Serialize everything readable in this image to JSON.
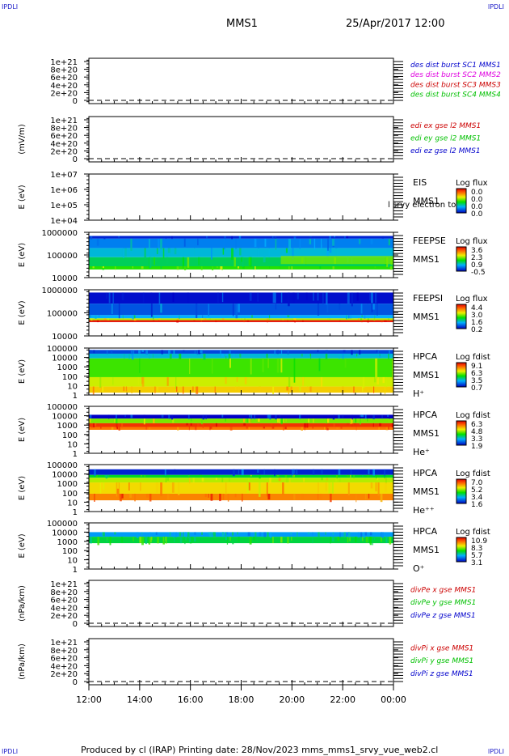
{
  "corners": {
    "tl": "IPDLI",
    "tr": "IPDLI",
    "bl": "IPDLI",
    "br": "IPDLI"
  },
  "header": {
    "mission": "MMS1",
    "datetime": "25/Apr/2017 12:00"
  },
  "footer": {
    "text": "Produced by cl (IRAP)   Printing date: 28/Nov/2023   mms_mms1_srvy_vue_web2.cl"
  },
  "xaxis": {
    "ticks": [
      "12:00",
      "14:00",
      "16:00",
      "18:00",
      "20:00",
      "22:00",
      "00:00"
    ]
  },
  "colors": {
    "red": "#cc0000",
    "green": "#00c000",
    "blue": "#0000cc",
    "magenta": "#e000e0"
  },
  "chart_data": [
    {
      "type": "line",
      "ylabel": "",
      "yticks": [
        "1e+21",
        "8e+20",
        "6e+20",
        "4e+20",
        "2e+20",
        "0"
      ],
      "ylim": [
        0,
        1e+21
      ],
      "legend": [
        {
          "text": "des dist burst SC1 MMS1",
          "color": "#0000cc"
        },
        {
          "text": "des dist burst SC2 MMS2",
          "color": "#e000e0"
        },
        {
          "text": "des dist burst SC3 MMS3",
          "color": "#cc0000"
        },
        {
          "text": "des dist burst SC4 MMS4",
          "color": "#00c000"
        }
      ]
    },
    {
      "type": "line",
      "ylabel": "(mV/m)",
      "yticks": [
        "1e+21",
        "8e+20",
        "6e+20",
        "4e+20",
        "2e+20",
        "0"
      ],
      "ylim": [
        0,
        1e+21
      ],
      "legend": [
        {
          "text": "edi ex gse l2 MMS1",
          "color": "#cc0000"
        },
        {
          "text": "edi ey gse l2 MMS1",
          "color": "#00c000"
        },
        {
          "text": "edi ez gse l2 MMS1",
          "color": "#0000cc"
        }
      ]
    },
    {
      "type": "heatmap",
      "ylabel": "E (eV)",
      "yticks": [
        "1e+07",
        "1e+06",
        "1e+05",
        "1e+04"
      ],
      "ylim": [
        10000,
        10000000
      ],
      "instrument": [
        "EIS",
        "MMS1"
      ],
      "overlay": "l srvy electron to",
      "colorbar_title": "Log flux",
      "colorbar": [
        "0.0",
        "0.0",
        "0.0",
        "0.0"
      ]
    },
    {
      "type": "heatmap",
      "ylabel": "E (eV)",
      "yticks": [
        "1000000",
        "100000",
        "10000"
      ],
      "ylim": [
        10000,
        1000000
      ],
      "instrument": [
        "FEEPSE",
        "MMS1"
      ],
      "colorbar_title": "Log flux",
      "colorbar": [
        "3.6",
        "2.3",
        "0.9",
        "-0.5"
      ]
    },
    {
      "type": "heatmap",
      "ylabel": "E (eV)",
      "yticks": [
        "1000000",
        "100000",
        "10000"
      ],
      "ylim": [
        10000,
        1000000
      ],
      "instrument": [
        "FEEPSI",
        "MMS1"
      ],
      "colorbar_title": "Log flux",
      "colorbar": [
        "4.4",
        "3.0",
        "1.6",
        "0.2"
      ]
    },
    {
      "type": "heatmap",
      "ylabel": "E (eV)",
      "yticks": [
        "100000",
        "10000",
        "1000",
        "100",
        "10",
        "1"
      ],
      "ylim": [
        1,
        100000
      ],
      "instrument": [
        "HPCA",
        "MMS1",
        "H⁺"
      ],
      "colorbar_title": "Log fdist",
      "colorbar": [
        "9.1",
        "6.3",
        "3.5",
        "0.7"
      ]
    },
    {
      "type": "heatmap",
      "ylabel": "E (eV)",
      "yticks": [
        "100000",
        "10000",
        "1000",
        "100",
        "10",
        "1"
      ],
      "ylim": [
        1,
        100000
      ],
      "instrument": [
        "HPCA",
        "MMS1",
        "He⁺"
      ],
      "colorbar_title": "Log fdist",
      "colorbar": [
        "6.3",
        "4.8",
        "3.3",
        "1.9"
      ]
    },
    {
      "type": "heatmap",
      "ylabel": "E (eV)",
      "yticks": [
        "100000",
        "10000",
        "1000",
        "100",
        "10",
        "1"
      ],
      "ylim": [
        1,
        100000
      ],
      "instrument": [
        "HPCA",
        "MMS1",
        "He⁺⁺"
      ],
      "colorbar_title": "Log fdist",
      "colorbar": [
        "7.0",
        "5.2",
        "3.4",
        "1.6"
      ]
    },
    {
      "type": "heatmap",
      "ylabel": "E (eV)",
      "yticks": [
        "100000",
        "10000",
        "1000",
        "100",
        "10",
        "1"
      ],
      "ylim": [
        1,
        100000
      ],
      "instrument": [
        "HPCA",
        "MMS1",
        "O⁺"
      ],
      "colorbar_title": "Log fdist",
      "colorbar": [
        "10.9",
        "8.3",
        "5.7",
        "3.1"
      ]
    },
    {
      "type": "line",
      "ylabel": "(nPa/km)",
      "yticks": [
        "1e+21",
        "8e+20",
        "6e+20",
        "4e+20",
        "2e+20",
        "0"
      ],
      "ylim": [
        0,
        1e+21
      ],
      "legend": [
        {
          "text": "divPe x gse MMS1",
          "color": "#cc0000"
        },
        {
          "text": "divPe y gse MMS1",
          "color": "#00c000"
        },
        {
          "text": "divPe z gse MMS1",
          "color": "#0000cc"
        }
      ]
    },
    {
      "type": "line",
      "ylabel": "(nPa/km)",
      "yticks": [
        "1e+21",
        "8e+20",
        "6e+20",
        "4e+20",
        "2e+20",
        "0"
      ],
      "ylim": [
        0,
        1e+21
      ],
      "legend": [
        {
          "text": "divPi x gse MMS1",
          "color": "#cc0000"
        },
        {
          "text": "divPi y gse MMS1",
          "color": "#00c000"
        },
        {
          "text": "divPi z gse MMS1",
          "color": "#0000cc"
        }
      ]
    }
  ]
}
